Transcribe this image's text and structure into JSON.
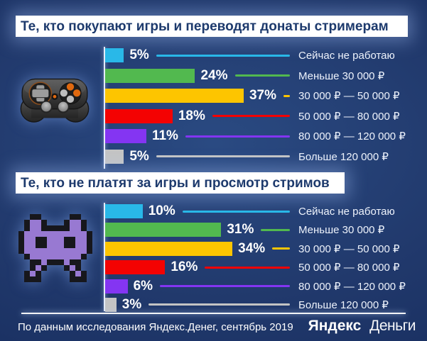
{
  "chart_data": [
    {
      "type": "bar",
      "orientation": "horizontal",
      "title": "Те, кто покупают игры и переводят донаты стримерам",
      "unit": "%",
      "icon": "gamepad-icon",
      "categories": [
        "Сейчас не работаю",
        "Меньше 30 000 ₽",
        "30 000 ₽ — 50 000 ₽",
        "50 000 ₽ — 80 000 ₽",
        "80 000 ₽ — 120 000 ₽",
        "Больше 120 000 ₽"
      ],
      "values": [
        5,
        24,
        37,
        18,
        11,
        5
      ],
      "colors": [
        "#29b8e8",
        "#52b94f",
        "#fdc500",
        "#f40202",
        "#8435f2",
        "#c4c4c4"
      ],
      "xlim": [
        0,
        40
      ],
      "grid": false,
      "value_labels": "outside-end"
    },
    {
      "type": "bar",
      "orientation": "horizontal",
      "title": "Те, кто не платят за игры и просмотр стримов",
      "unit": "%",
      "icon": "space-invader-icon",
      "categories": [
        "Сейчас не работаю",
        "Меньше 30 000 ₽",
        "30 000 ₽ — 50 000 ₽",
        "50 000 ₽ — 80 000 ₽",
        "80 000 ₽ — 120 000 ₽",
        "Больше 120 000 ₽"
      ],
      "values": [
        10,
        31,
        34,
        16,
        6,
        3
      ],
      "colors": [
        "#29b8e8",
        "#52b94f",
        "#fdc500",
        "#f40202",
        "#8435f2",
        "#c4c4c4"
      ],
      "xlim": [
        0,
        40
      ],
      "grid": false,
      "value_labels": "outside-end"
    }
  ],
  "footer": {
    "source": "По данным исследования Яндекс.Денег, сентябрь 2019",
    "logo": {
      "bold": "Яндекс",
      "light": "Деньги"
    }
  },
  "theme": {
    "background": "#21396c",
    "band_background": "#ffffff",
    "band_text": "#1d3a6d",
    "text": "#ffffff"
  }
}
